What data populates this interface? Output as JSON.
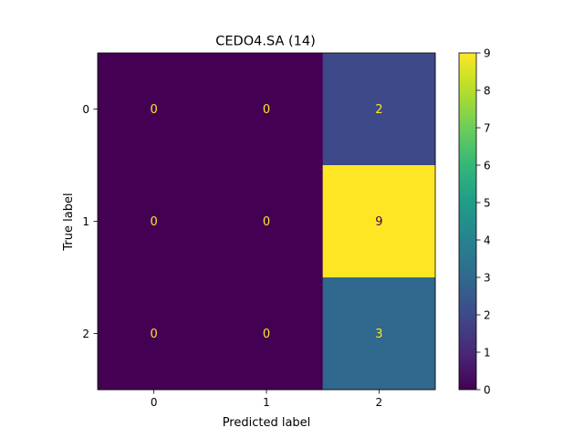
{
  "chart_data": {
    "type": "heatmap",
    "title": "CEDO4.SA (14)",
    "xlabel": "Predicted label",
    "ylabel": "True label",
    "x_categories": [
      "0",
      "1",
      "2"
    ],
    "y_categories": [
      "0",
      "1",
      "2"
    ],
    "values": [
      [
        0,
        0,
        2
      ],
      [
        0,
        0,
        9
      ],
      [
        0,
        0,
        3
      ]
    ],
    "colorbar": {
      "range": [
        0,
        9
      ],
      "ticks": [
        "0",
        "1",
        "2",
        "3",
        "4",
        "5",
        "6",
        "7",
        "8",
        "9"
      ]
    },
    "colormap": "viridis",
    "low_text_color": "#fde725",
    "high_text_color": "#440154"
  }
}
